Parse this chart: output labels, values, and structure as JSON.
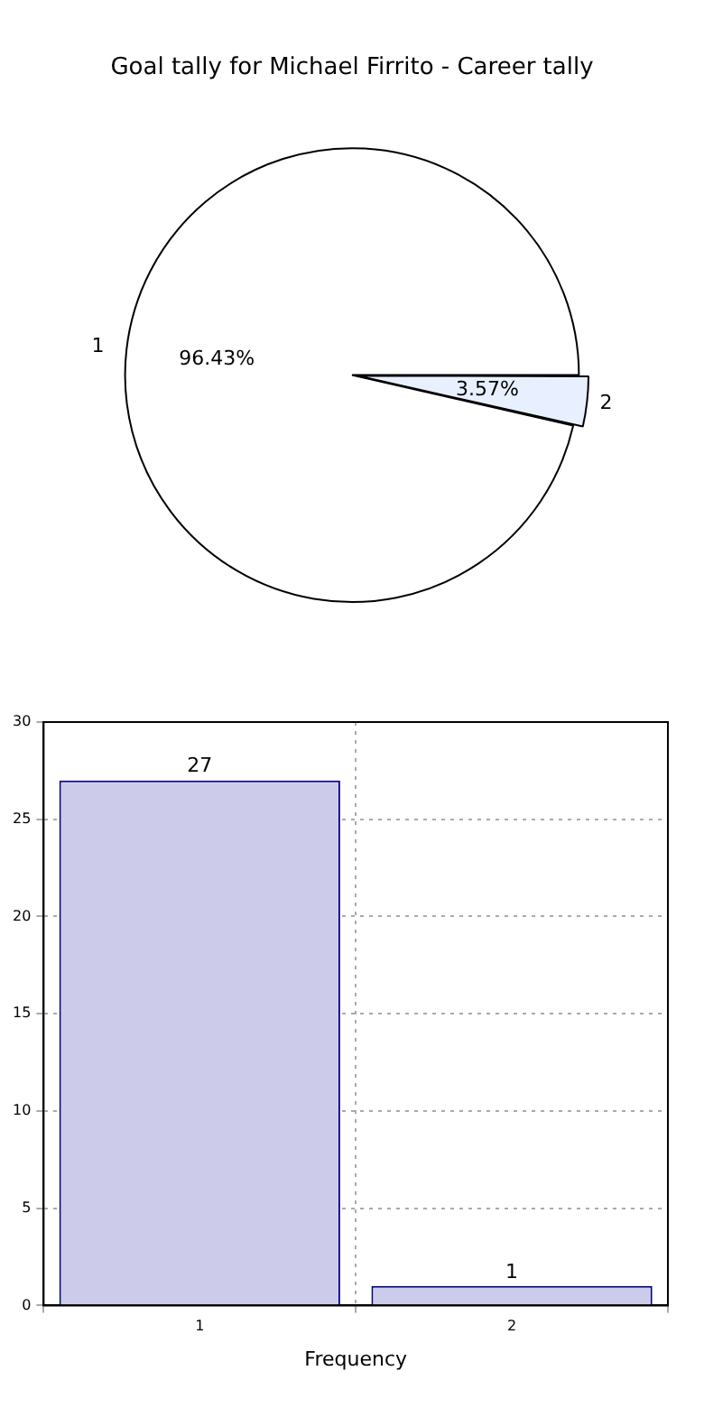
{
  "chart_data": [
    {
      "type": "pie",
      "title": "Goal tally for Michael Firrito - Career tally",
      "categories": [
        "1",
        "2"
      ],
      "values": [
        96.43,
        3.57
      ],
      "colors": [
        "#ffffff",
        "#e8f0ff"
      ],
      "value_labels": [
        "96.43%",
        "3.57%"
      ],
      "legend": false
    },
    {
      "type": "bar",
      "xlabel": "Frequency",
      "categories": [
        "1",
        "2"
      ],
      "values": [
        27,
        1
      ],
      "color": "#ccccea",
      "ylim": [
        0,
        30
      ],
      "yticks": [
        0,
        5,
        10,
        15,
        20,
        25,
        30
      ],
      "grid": true,
      "data_labels": true,
      "legend": false
    }
  ]
}
